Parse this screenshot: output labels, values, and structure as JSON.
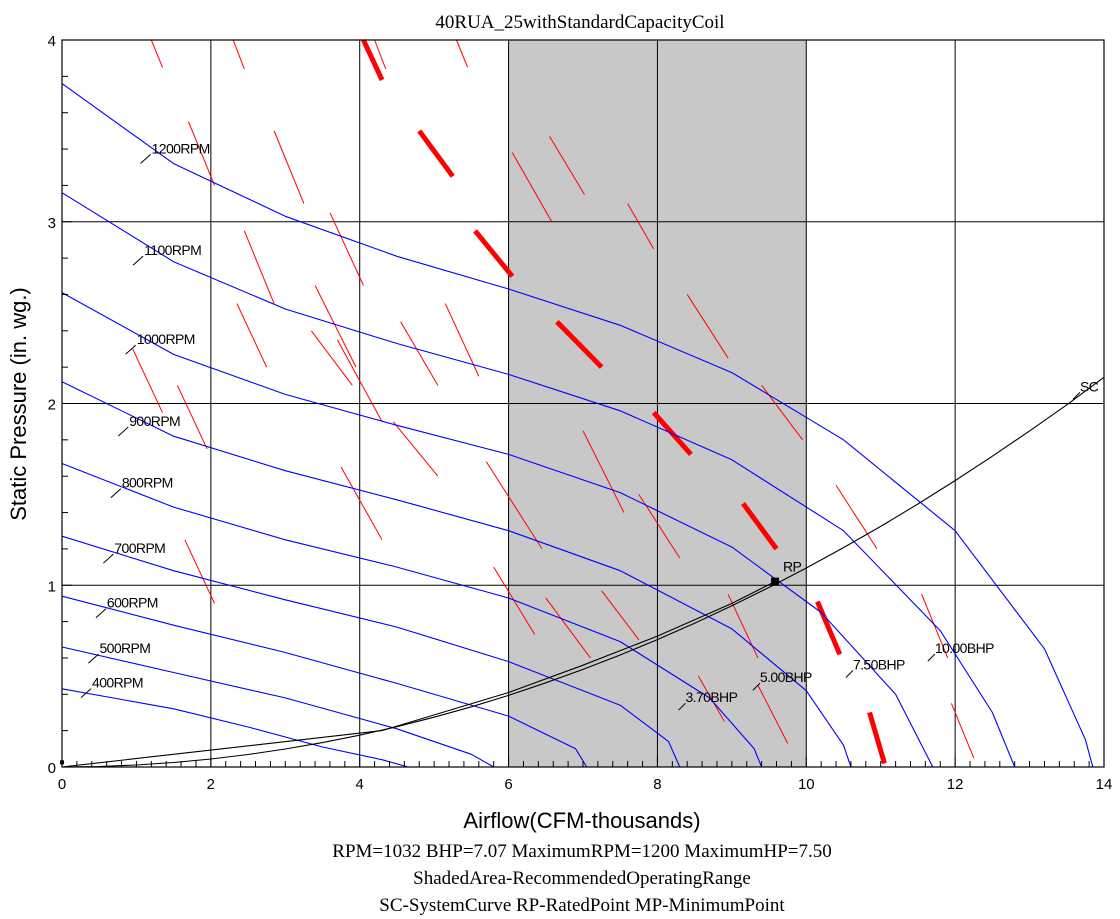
{
  "chart_data": {
    "type": "line",
    "title": "40RUA_25withStandardCapacityCoil",
    "xlabel": "Airflow(CFM-thousands)",
    "ylabel": "Static Pressure (in. wg.)",
    "xlim": [
      0,
      14
    ],
    "ylim": [
      0,
      4
    ],
    "x_ticks": [
      "0",
      "2",
      "4",
      "6",
      "8",
      "10",
      "12",
      "14"
    ],
    "y_ticks": [
      "0",
      "1",
      "2",
      "3",
      "4"
    ],
    "grid": true,
    "shaded_range": {
      "x": [
        6,
        10
      ],
      "label": "ShadedArea-RecommendedOperatingRange",
      "color": "#c8c8c8"
    },
    "footer_lines": [
      "RPM=1032 BHP=7.07 MaximumRPM=1200 MaximumHP=7.50",
      "ShadedArea-RecommendedOperatingRange",
      "SC-SystemCurve RP-RatedPoint MP-MinimumPoint"
    ],
    "rpm_curves": [
      {
        "name": "400RPM",
        "label_at": [
          0.35,
          0.42
        ],
        "points": [
          [
            0,
            0.43
          ],
          [
            1.5,
            0.32
          ],
          [
            2.5,
            0.22
          ],
          [
            3.5,
            0.11
          ],
          [
            4.3,
            0.04
          ],
          [
            4.65,
            0
          ]
        ]
      },
      {
        "name": "500RPM",
        "label_at": [
          0.45,
          0.61
        ],
        "points": [
          [
            0,
            0.66
          ],
          [
            1.5,
            0.52
          ],
          [
            3,
            0.38
          ],
          [
            4.5,
            0.21
          ],
          [
            5.5,
            0.07
          ],
          [
            5.8,
            0
          ]
        ]
      },
      {
        "name": "600RPM",
        "label_at": [
          0.55,
          0.86
        ],
        "points": [
          [
            0,
            0.94
          ],
          [
            1.5,
            0.78
          ],
          [
            3,
            0.63
          ],
          [
            4.5,
            0.46
          ],
          [
            6,
            0.28
          ],
          [
            6.9,
            0.1
          ],
          [
            7.05,
            0
          ]
        ]
      },
      {
        "name": "700RPM",
        "label_at": [
          0.65,
          1.16
        ],
        "points": [
          [
            0,
            1.27
          ],
          [
            1.5,
            1.08
          ],
          [
            3,
            0.92
          ],
          [
            4.5,
            0.77
          ],
          [
            6,
            0.58
          ],
          [
            7.5,
            0.34
          ],
          [
            8.15,
            0.14
          ],
          [
            8.3,
            0
          ]
        ]
      },
      {
        "name": "800RPM",
        "label_at": [
          0.75,
          1.52
        ],
        "points": [
          [
            0,
            1.67
          ],
          [
            1.5,
            1.43
          ],
          [
            3,
            1.25
          ],
          [
            4.5,
            1.1
          ],
          [
            6,
            0.93
          ],
          [
            7.5,
            0.69
          ],
          [
            8.7,
            0.38
          ],
          [
            9.3,
            0.1
          ],
          [
            9.4,
            0
          ]
        ]
      },
      {
        "name": "900RPM",
        "label_at": [
          0.85,
          1.86
        ],
        "points": [
          [
            0,
            2.12
          ],
          [
            1.5,
            1.82
          ],
          [
            3,
            1.63
          ],
          [
            4.5,
            1.47
          ],
          [
            6,
            1.3
          ],
          [
            7.5,
            1.08
          ],
          [
            9,
            0.76
          ],
          [
            10,
            0.42
          ],
          [
            10.5,
            0.12
          ],
          [
            10.6,
            0
          ]
        ]
      },
      {
        "name": "1000RPM",
        "label_at": [
          0.95,
          2.31
        ],
        "points": [
          [
            0,
            2.61
          ],
          [
            1.5,
            2.27
          ],
          [
            3,
            2.05
          ],
          [
            4.5,
            1.88
          ],
          [
            6,
            1.72
          ],
          [
            7.5,
            1.51
          ],
          [
            9,
            1.21
          ],
          [
            10.2,
            0.85
          ],
          [
            11.2,
            0.4
          ],
          [
            11.7,
            0
          ]
        ]
      },
      {
        "name": "1100RPM",
        "label_at": [
          1.05,
          2.8
        ],
        "points": [
          [
            0,
            3.16
          ],
          [
            1.5,
            2.78
          ],
          [
            3,
            2.52
          ],
          [
            4.5,
            2.33
          ],
          [
            6,
            2.16
          ],
          [
            7.5,
            1.96
          ],
          [
            9,
            1.69
          ],
          [
            10.5,
            1.3
          ],
          [
            11.8,
            0.75
          ],
          [
            12.5,
            0.3
          ],
          [
            12.8,
            0
          ]
        ]
      },
      {
        "name": "1200RPM",
        "label_at": [
          1.15,
          3.36
        ],
        "points": [
          [
            0,
            3.76
          ],
          [
            1.5,
            3.32
          ],
          [
            3,
            3.03
          ],
          [
            4.5,
            2.81
          ],
          [
            6,
            2.63
          ],
          [
            7.5,
            2.43
          ],
          [
            9,
            2.17
          ],
          [
            10.5,
            1.8
          ],
          [
            12,
            1.3
          ],
          [
            13.2,
            0.65
          ],
          [
            13.75,
            0.15
          ],
          [
            13.85,
            0
          ]
        ]
      }
    ],
    "bhp_labels": [
      {
        "name": "3.70BHP",
        "at": [
          8.35,
          0.34
        ]
      },
      {
        "name": "5.00BHP",
        "at": [
          9.35,
          0.45
        ]
      },
      {
        "name": "7.50BHP",
        "at": [
          10.6,
          0.52
        ]
      },
      {
        "name": "10.00BHP",
        "at": [
          11.7,
          0.61
        ]
      }
    ],
    "system_curve": {
      "name": "SC",
      "label_at": [
        13.65,
        2.05
      ],
      "line_a": [
        [
          0,
          0
        ],
        [
          0.5,
          0.003
        ],
        [
          1,
          0.011
        ],
        [
          1.5,
          0.025
        ],
        [
          2,
          0.044
        ],
        [
          2.5,
          0.069
        ],
        [
          3,
          0.099
        ],
        [
          3.5,
          0.134
        ],
        [
          4,
          0.175
        ],
        [
          4.5,
          0.222
        ],
        [
          5,
          0.274
        ],
        [
          5.5,
          0.331
        ],
        [
          6,
          0.394
        ],
        [
          6.5,
          0.463
        ],
        [
          7,
          0.537
        ],
        [
          7.5,
          0.616
        ],
        [
          8,
          0.701
        ],
        [
          8.5,
          0.791
        ],
        [
          9,
          0.887
        ],
        [
          9.5,
          0.988
        ],
        [
          10,
          1.095
        ],
        [
          10.5,
          1.207
        ],
        [
          11,
          1.324
        ],
        [
          11.5,
          1.447
        ],
        [
          12,
          1.576
        ],
        [
          12.5,
          1.71
        ],
        [
          13,
          1.849
        ],
        [
          13.5,
          1.993
        ],
        [
          14,
          2.144
        ]
      ],
      "line_b": [
        [
          0,
          0
        ],
        [
          4.3,
          0.2
        ],
        [
          6,
          0.41
        ],
        [
          7,
          0.56
        ],
        [
          8,
          0.72
        ],
        [
          9,
          0.9
        ],
        [
          9.58,
          1.02
        ]
      ]
    },
    "rated_point": {
      "name": "RP",
      "x": 9.58,
      "y": 1.02
    },
    "minimum_point": {
      "x": 0,
      "y": 0.02
    },
    "thin_red_marks": [
      [
        [
          1.2,
          4.0
        ],
        [
          1.35,
          3.85
        ]
      ],
      [
        [
          2.3,
          4.0
        ],
        [
          2.45,
          3.84
        ]
      ],
      [
        [
          4.2,
          4.0
        ],
        [
          4.35,
          3.84
        ]
      ],
      [
        [
          5.3,
          4.0
        ],
        [
          5.45,
          3.85
        ]
      ],
      [
        [
          1.7,
          3.55
        ],
        [
          2.05,
          3.2
        ]
      ],
      [
        [
          2.85,
          3.5
        ],
        [
          3.25,
          3.1
        ]
      ],
      [
        [
          3.6,
          3.05
        ],
        [
          4.05,
          2.65
        ]
      ],
      [
        [
          0.95,
          2.3
        ],
        [
          1.35,
          1.95
        ]
      ],
      [
        [
          1.55,
          2.1
        ],
        [
          1.95,
          1.75
        ]
      ],
      [
        [
          1.65,
          1.25
        ],
        [
          2.05,
          0.9
        ]
      ],
      [
        [
          2.45,
          2.95
        ],
        [
          2.85,
          2.55
        ]
      ],
      [
        [
          3.4,
          2.65
        ],
        [
          3.95,
          2.2
        ]
      ],
      [
        [
          2.35,
          2.55
        ],
        [
          2.75,
          2.2
        ]
      ],
      [
        [
          3.35,
          2.4
        ],
        [
          3.9,
          2.1
        ]
      ],
      [
        [
          3.7,
          2.35
        ],
        [
          4.3,
          1.9
        ]
      ],
      [
        [
          3.75,
          1.65
        ],
        [
          4.3,
          1.25
        ]
      ],
      [
        [
          4.55,
          2.45
        ],
        [
          5.05,
          2.1
        ]
      ],
      [
        [
          5.15,
          2.55
        ],
        [
          5.6,
          2.15
        ]
      ],
      [
        [
          6.05,
          3.38
        ],
        [
          6.58,
          3.0
        ]
      ],
      [
        [
          6.55,
          3.47
        ],
        [
          7.02,
          3.15
        ]
      ],
      [
        [
          4.45,
          1.9
        ],
        [
          5.05,
          1.6
        ]
      ],
      [
        [
          5.7,
          1.68
        ],
        [
          6.45,
          1.2
        ]
      ],
      [
        [
          5.8,
          1.1
        ],
        [
          6.35,
          0.73
        ]
      ],
      [
        [
          7.0,
          1.85
        ],
        [
          7.55,
          1.4
        ]
      ],
      [
        [
          7.6,
          3.1
        ],
        [
          7.95,
          2.85
        ]
      ],
      [
        [
          8.4,
          2.6
        ],
        [
          8.95,
          2.25
        ]
      ],
      [
        [
          9.4,
          2.1
        ],
        [
          9.95,
          1.8
        ]
      ],
      [
        [
          7.75,
          1.5
        ],
        [
          8.3,
          1.15
        ]
      ],
      [
        [
          8.95,
          0.95
        ],
        [
          9.35,
          0.6
        ]
      ],
      [
        [
          10.4,
          1.55
        ],
        [
          10.95,
          1.2
        ]
      ],
      [
        [
          11.55,
          0.95
        ],
        [
          11.9,
          0.6
        ]
      ],
      [
        [
          11.95,
          0.35
        ],
        [
          12.25,
          0.05
        ]
      ],
      [
        [
          6.5,
          0.93
        ],
        [
          7.1,
          0.6
        ]
      ],
      [
        [
          7.25,
          0.97
        ],
        [
          7.75,
          0.7
        ]
      ],
      [
        [
          8.55,
          0.5
        ],
        [
          8.9,
          0.25
        ]
      ],
      [
        [
          9.35,
          0.45
        ],
        [
          9.75,
          0.13
        ]
      ]
    ],
    "thick_red_marks": [
      [
        [
          4.05,
          4.0
        ],
        [
          4.3,
          3.78
        ]
      ],
      [
        [
          4.8,
          3.5
        ],
        [
          5.25,
          3.25
        ]
      ],
      [
        [
          5.55,
          2.95
        ],
        [
          6.05,
          2.7
        ]
      ],
      [
        [
          6.65,
          2.45
        ],
        [
          7.25,
          2.2
        ]
      ],
      [
        [
          7.95,
          1.95
        ],
        [
          8.45,
          1.72
        ]
      ],
      [
        [
          9.15,
          1.45
        ],
        [
          9.6,
          1.2
        ]
      ],
      [
        [
          10.15,
          0.91
        ],
        [
          10.45,
          0.62
        ]
      ],
      [
        [
          10.85,
          0.3
        ],
        [
          11.05,
          0.02
        ]
      ]
    ]
  }
}
